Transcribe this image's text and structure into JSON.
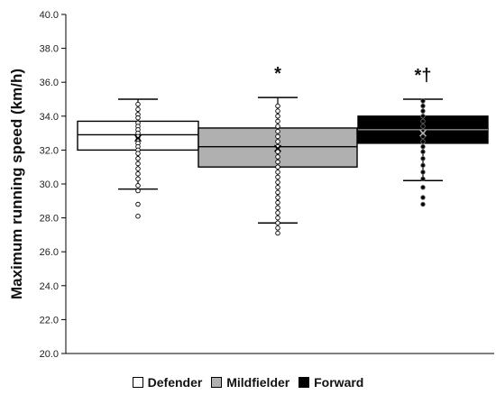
{
  "chart_data": {
    "type": "box",
    "ylabel": "Maximum running speed (km/h)",
    "ylim": [
      20.0,
      40.0
    ],
    "yticks": [
      "20.0",
      "22.0",
      "24.0",
      "26.0",
      "28.0",
      "30.0",
      "32.0",
      "34.0",
      "36.0",
      "38.0",
      "40.0"
    ],
    "legend_position": "bottom",
    "grid": false,
    "series": [
      {
        "name": "Defender",
        "color": "#ffffff",
        "point_color": "#ffffff",
        "min": 29.7,
        "q1": 32.0,
        "median": 32.9,
        "q3": 33.7,
        "max": 35.0,
        "points": [
          34.7,
          34.4,
          34.1,
          33.9,
          33.6,
          33.4,
          33.2,
          33.0,
          32.8,
          32.6,
          32.4,
          32.2,
          32.0,
          31.8,
          31.5,
          31.2,
          30.9,
          30.6,
          30.3,
          29.9,
          29.6,
          28.8,
          28.1
        ],
        "mean": 32.7,
        "annotation": ""
      },
      {
        "name": "Mildfielder",
        "color": "#b0b0b0",
        "point_color": "#ffffff",
        "min": 27.7,
        "q1": 31.0,
        "median": 32.2,
        "q3": 33.3,
        "max": 35.1,
        "points": [
          34.6,
          34.3,
          34.0,
          33.7,
          33.4,
          33.1,
          32.8,
          32.5,
          32.2,
          31.9,
          31.6,
          31.3,
          31.0,
          30.7,
          30.4,
          30.1,
          29.8,
          29.5,
          29.2,
          28.9,
          28.6,
          28.3,
          28.0,
          27.7,
          27.4,
          27.1
        ],
        "mean": 32.1,
        "annotation": "*"
      },
      {
        "name": "Forward",
        "color": "#000000",
        "point_color": "#000000",
        "min": 30.2,
        "q1": 32.4,
        "median": 33.2,
        "q3": 34.0,
        "max": 35.0,
        "points": [
          34.9,
          34.6,
          34.3,
          34.0,
          33.7,
          33.4,
          33.1,
          32.8,
          32.5,
          32.2,
          31.9,
          31.5,
          31.1,
          30.7,
          30.3,
          29.8,
          29.2,
          28.8
        ],
        "mean": 33.0,
        "annotation": "*†"
      }
    ]
  }
}
